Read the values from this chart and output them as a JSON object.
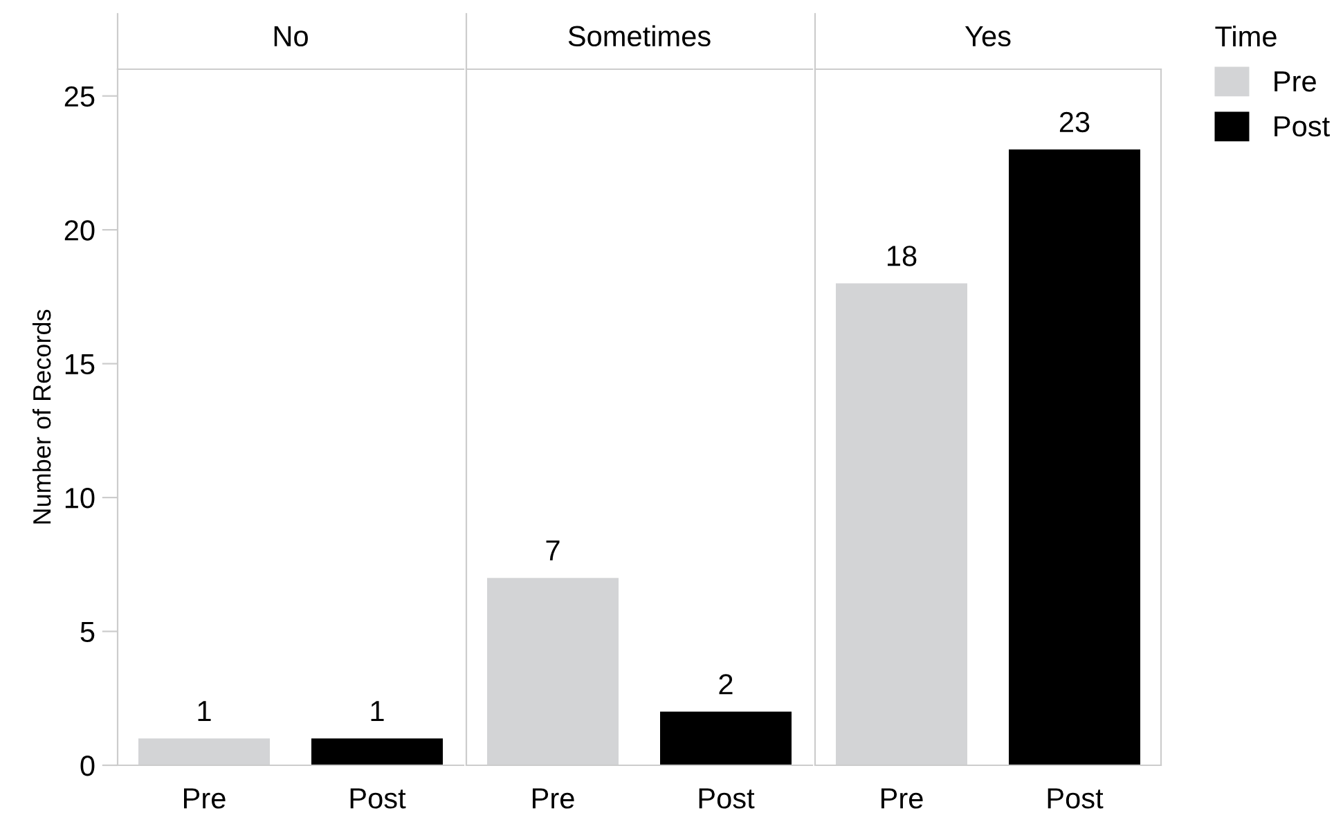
{
  "chart_data": [
    {
      "type": "bar",
      "title": "No",
      "ylabel": "Number of Records",
      "categories": [
        "Pre",
        "Post"
      ],
      "ylim": [
        0,
        26
      ],
      "yticks": [
        0,
        5,
        10,
        15,
        20,
        25
      ],
      "data_labels": true,
      "grid": false,
      "series": [
        {
          "color": "#d3d4d6",
          "values": [
            1,
            null
          ]
        },
        {
          "color": "#000000",
          "values": [
            null,
            1
          ]
        }
      ]
    },
    {
      "type": "bar",
      "title": "Sometimes",
      "categories": [
        "Pre",
        "Post"
      ],
      "ylim": [
        0,
        26
      ],
      "tick_labels": "x",
      "data_labels": true,
      "grid": false,
      "series": [
        {
          "color": "#d3d4d6",
          "values": [
            7,
            null
          ]
        },
        {
          "color": "#000000",
          "values": [
            null,
            2
          ]
        }
      ]
    },
    {
      "type": "bar",
      "title": "Yes",
      "categories": [
        "Pre",
        "Post"
      ],
      "ylim": [
        0,
        26
      ],
      "tick_labels": "x",
      "data_labels": true,
      "grid": false,
      "legend": "right",
      "legend_title": "Time",
      "series": [
        {
          "name": "Pre",
          "color": "#d3d4d6",
          "values": [
            18,
            null
          ]
        },
        {
          "name": "Post",
          "color": "#000000",
          "values": [
            null,
            23
          ]
        }
      ]
    }
  ]
}
